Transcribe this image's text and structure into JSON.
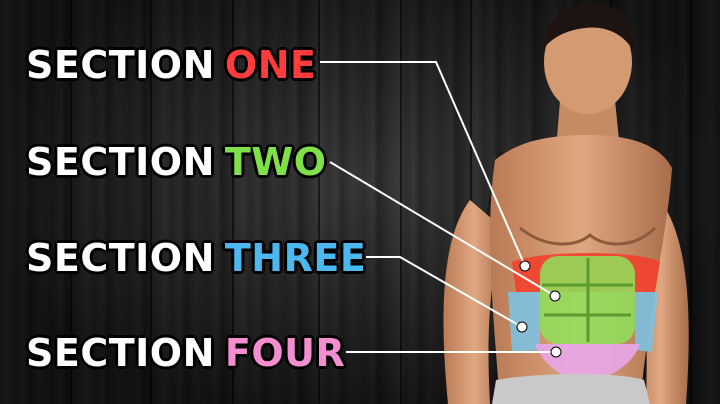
{
  "labels": [
    {
      "word": "SECTION",
      "accent": "ONE",
      "accent_color": "#ff3b3b"
    },
    {
      "word": "SECTION",
      "accent": "TWO",
      "accent_color": "#7fe04a"
    },
    {
      "word": "SECTION",
      "accent": "THREE",
      "accent_color": "#4cb8f0"
    },
    {
      "word": "SECTION",
      "accent": "FOUR",
      "accent_color": "#f48ed0"
    }
  ],
  "colors": {
    "section_one": "#f2412e",
    "section_two": "#8ee05a",
    "section_three": "#79c3e6",
    "section_four": "#e8a6e8"
  }
}
